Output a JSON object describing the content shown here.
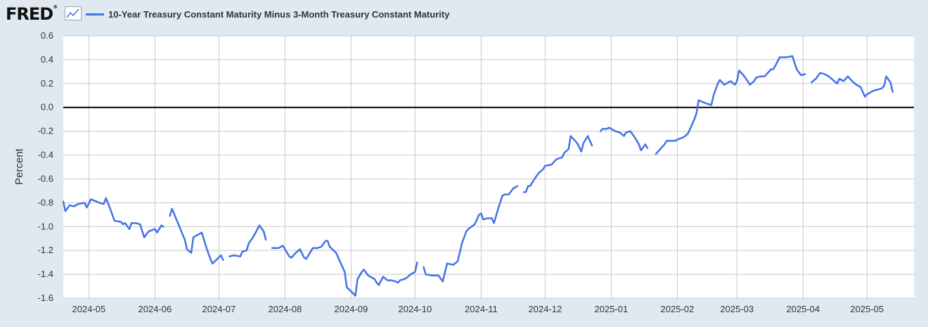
{
  "header": {
    "logo": "FRED",
    "logo_mark": "®"
  },
  "colors": {
    "series": "#4572e7",
    "background": "#e1e9f0",
    "plot": "#ffffff",
    "grid": "#c8c8c8",
    "zero_line": "#000000"
  },
  "chart_data": {
    "type": "line",
    "ylabel": "Percent",
    "ylim": [
      -1.6,
      0.6
    ],
    "yticks": [
      0.6,
      0.4,
      0.2,
      0.0,
      -0.2,
      -0.4,
      -0.6,
      -0.8,
      -1.0,
      -1.2,
      -1.4,
      -1.6
    ],
    "ytick_labels": [
      "0.6",
      "0.4",
      "0.2",
      "0.0",
      "-0.2",
      "-0.4",
      "-0.6",
      "-0.8",
      "-1.0",
      "-1.2",
      "-1.4",
      "-1.6"
    ],
    "x_range": [
      "2024-04-19",
      "2025-05-23"
    ],
    "xticks": [
      "2024-05-01",
      "2024-06-01",
      "2024-07-01",
      "2024-08-01",
      "2024-09-01",
      "2024-10-01",
      "2024-11-01",
      "2024-12-01",
      "2025-01-01",
      "2025-02-01",
      "2025-03-01",
      "2025-04-01",
      "2025-05-01"
    ],
    "xtick_labels": [
      "2024-05",
      "2024-06",
      "2024-07",
      "2024-08",
      "2024-09",
      "2024-10",
      "2024-11",
      "2024-12",
      "2025-01",
      "2025-02",
      "2025-03",
      "2025-04",
      "2025-05"
    ],
    "grid": true,
    "legend_position": "top-left",
    "series": [
      {
        "name": "10-Year Treasury Constant Maturity Minus 3-Month Treasury Constant Maturity",
        "segments": [
          [
            [
              "2024-04-19",
              -0.79
            ],
            [
              "2024-04-20",
              -0.87
            ],
            [
              "2024-04-22",
              -0.82
            ],
            [
              "2024-04-24",
              -0.83
            ],
            [
              "2024-04-26",
              -0.81
            ],
            [
              "2024-04-29",
              -0.8
            ],
            [
              "2024-04-30",
              -0.84
            ],
            [
              "2024-05-02",
              -0.77
            ],
            [
              "2024-05-06",
              -0.8
            ],
            [
              "2024-05-08",
              -0.81
            ],
            [
              "2024-05-09",
              -0.76
            ],
            [
              "2024-05-11",
              -0.85
            ],
            [
              "2024-05-13",
              -0.95
            ],
            [
              "2024-05-16",
              -0.96
            ],
            [
              "2024-05-17",
              -0.98
            ],
            [
              "2024-05-18",
              -0.97
            ],
            [
              "2024-05-20",
              -1.02
            ],
            [
              "2024-05-21",
              -0.97
            ],
            [
              "2024-05-23",
              -0.97
            ],
            [
              "2024-05-25",
              -0.98
            ],
            [
              "2024-05-27",
              -1.09
            ],
            [
              "2024-05-29",
              -1.04
            ],
            [
              "2024-06-01",
              -1.02
            ],
            [
              "2024-06-02",
              -1.05
            ],
            [
              "2024-06-04",
              -0.99
            ],
            [
              "2024-06-05",
              -1.0
            ]
          ],
          [
            [
              "2024-06-08",
              -0.91
            ],
            [
              "2024-06-09",
              -0.85
            ],
            [
              "2024-06-12",
              -0.98
            ],
            [
              "2024-06-15",
              -1.11
            ],
            [
              "2024-06-16",
              -1.19
            ],
            [
              "2024-06-18",
              -1.22
            ],
            [
              "2024-06-19",
              -1.09
            ],
            [
              "2024-06-23",
              -1.05
            ],
            [
              "2024-06-25",
              -1.17
            ],
            [
              "2024-06-27",
              -1.27
            ],
            [
              "2024-06-28",
              -1.31
            ],
            [
              "2024-07-02",
              -1.24
            ],
            [
              "2024-07-03",
              -1.28
            ]
          ],
          [
            [
              "2024-07-06",
              -1.25
            ],
            [
              "2024-07-08",
              -1.24
            ],
            [
              "2024-07-11",
              -1.25
            ],
            [
              "2024-07-12",
              -1.21
            ],
            [
              "2024-07-14",
              -1.2
            ],
            [
              "2024-07-15",
              -1.14
            ],
            [
              "2024-07-17",
              -1.09
            ],
            [
              "2024-07-20",
              -0.99
            ],
            [
              "2024-07-22",
              -1.04
            ],
            [
              "2024-07-23",
              -1.11
            ]
          ],
          [
            [
              "2024-07-26",
              -1.18
            ],
            [
              "2024-07-29",
              -1.18
            ],
            [
              "2024-07-31",
              -1.16
            ],
            [
              "2024-08-01",
              -1.19
            ],
            [
              "2024-08-03",
              -1.25
            ],
            [
              "2024-08-04",
              -1.26
            ],
            [
              "2024-08-06",
              -1.22
            ],
            [
              "2024-08-08",
              -1.19
            ],
            [
              "2024-08-10",
              -1.26
            ],
            [
              "2024-08-11",
              -1.27
            ],
            [
              "2024-08-14",
              -1.18
            ],
            [
              "2024-08-16",
              -1.18
            ],
            [
              "2024-08-18",
              -1.17
            ],
            [
              "2024-08-20",
              -1.12
            ],
            [
              "2024-08-21",
              -1.12
            ],
            [
              "2024-08-22",
              -1.17
            ],
            [
              "2024-08-25",
              -1.22
            ],
            [
              "2024-08-27",
              -1.3
            ],
            [
              "2024-08-29",
              -1.38
            ],
            [
              "2024-08-30",
              -1.51
            ],
            [
              "2024-09-02",
              -1.56
            ],
            [
              "2024-09-03",
              -1.58
            ],
            [
              "2024-09-04",
              -1.44
            ],
            [
              "2024-09-06",
              -1.38
            ],
            [
              "2024-09-07",
              -1.36
            ],
            [
              "2024-09-09",
              -1.41
            ],
            [
              "2024-09-12",
              -1.44
            ],
            [
              "2024-09-13",
              -1.47
            ],
            [
              "2024-09-14",
              -1.49
            ],
            [
              "2024-09-16",
              -1.42
            ],
            [
              "2024-09-18",
              -1.45
            ],
            [
              "2024-09-20",
              -1.45
            ],
            [
              "2024-09-22",
              -1.46
            ],
            [
              "2024-09-23",
              -1.47
            ],
            [
              "2024-09-24",
              -1.45
            ],
            [
              "2024-09-26",
              -1.44
            ],
            [
              "2024-09-27",
              -1.43
            ],
            [
              "2024-09-29",
              -1.4
            ],
            [
              "2024-10-01",
              -1.38
            ],
            [
              "2024-10-02",
              -1.3
            ]
          ],
          [
            [
              "2024-10-05",
              -1.34
            ],
            [
              "2024-10-06",
              -1.4
            ],
            [
              "2024-10-09",
              -1.41
            ],
            [
              "2024-10-10",
              -1.41
            ],
            [
              "2024-10-12",
              -1.41
            ],
            [
              "2024-10-14",
              -1.46
            ],
            [
              "2024-10-16",
              -1.31
            ],
            [
              "2024-10-19",
              -1.32
            ],
            [
              "2024-10-21",
              -1.29
            ],
            [
              "2024-10-23",
              -1.14
            ],
            [
              "2024-10-25",
              -1.04
            ],
            [
              "2024-10-26",
              -1.02
            ],
            [
              "2024-10-29",
              -0.98
            ],
            [
              "2024-10-31",
              -0.9
            ],
            [
              "2024-11-01",
              -0.89
            ],
            [
              "2024-11-02",
              -0.94
            ],
            [
              "2024-11-04",
              -0.93
            ],
            [
              "2024-11-06",
              -0.93
            ],
            [
              "2024-11-07",
              -0.97
            ],
            [
              "2024-11-09",
              -0.85
            ],
            [
              "2024-11-11",
              -0.74
            ],
            [
              "2024-11-12",
              -0.73
            ],
            [
              "2024-11-14",
              -0.73
            ],
            [
              "2024-11-16",
              -0.68
            ],
            [
              "2024-11-18",
              -0.66
            ]
          ],
          [
            [
              "2024-11-21",
              -0.71
            ],
            [
              "2024-11-22",
              -0.71
            ],
            [
              "2024-11-23",
              -0.66
            ],
            [
              "2024-11-24",
              -0.66
            ],
            [
              "2024-11-26",
              -0.6
            ],
            [
              "2024-11-28",
              -0.55
            ],
            [
              "2024-11-30",
              -0.52
            ],
            [
              "2024-12-01",
              -0.49
            ],
            [
              "2024-12-04",
              -0.48
            ],
            [
              "2024-12-06",
              -0.44
            ],
            [
              "2024-12-07",
              -0.43
            ],
            [
              "2024-12-09",
              -0.42
            ],
            [
              "2024-12-10",
              -0.38
            ],
            [
              "2024-12-12",
              -0.35
            ],
            [
              "2024-12-13",
              -0.24
            ],
            [
              "2024-12-16",
              -0.3
            ],
            [
              "2024-12-18",
              -0.37
            ],
            [
              "2024-12-19",
              -0.3
            ],
            [
              "2024-12-21",
              -0.24
            ],
            [
              "2024-12-23",
              -0.32
            ]
          ],
          [
            [
              "2024-12-27",
              -0.2
            ],
            [
              "2024-12-28",
              -0.18
            ],
            [
              "2024-12-30",
              -0.18
            ],
            [
              "2024-12-31",
              -0.17
            ],
            [
              "2025-01-03",
              -0.2
            ],
            [
              "2025-01-05",
              -0.21
            ],
            [
              "2025-01-07",
              -0.24
            ],
            [
              "2025-01-08",
              -0.21
            ],
            [
              "2025-01-10",
              -0.2
            ],
            [
              "2025-01-12",
              -0.25
            ],
            [
              "2025-01-14",
              -0.31
            ],
            [
              "2025-01-15",
              -0.36
            ],
            [
              "2025-01-17",
              -0.31
            ],
            [
              "2025-01-18",
              -0.34
            ]
          ],
          [
            [
              "2025-01-22",
              -0.39
            ],
            [
              "2025-01-24",
              -0.35
            ],
            [
              "2025-01-26",
              -0.31
            ],
            [
              "2025-01-27",
              -0.28
            ],
            [
              "2025-01-29",
              -0.28
            ],
            [
              "2025-01-31",
              -0.28
            ],
            [
              "2025-02-01",
              -0.27
            ],
            [
              "2025-02-04",
              -0.25
            ],
            [
              "2025-02-06",
              -0.22
            ],
            [
              "2025-02-07",
              -0.18
            ],
            [
              "2025-02-09",
              -0.1
            ],
            [
              "2025-02-10",
              -0.05
            ],
            [
              "2025-02-11",
              0.06
            ],
            [
              "2025-02-15",
              0.03
            ],
            [
              "2025-02-17",
              0.02
            ],
            [
              "2025-02-18",
              0.1
            ],
            [
              "2025-02-20",
              0.2
            ],
            [
              "2025-02-21",
              0.23
            ],
            [
              "2025-02-23",
              0.19
            ],
            [
              "2025-02-24",
              0.2
            ],
            [
              "2025-02-26",
              0.22
            ],
            [
              "2025-02-28",
              0.19
            ],
            [
              "2025-03-01",
              0.22
            ],
            [
              "2025-03-02",
              0.31
            ],
            [
              "2025-03-04",
              0.27
            ],
            [
              "2025-03-06",
              0.22
            ],
            [
              "2025-03-07",
              0.19
            ],
            [
              "2025-03-09",
              0.22
            ],
            [
              "2025-03-10",
              0.25
            ],
            [
              "2025-03-12",
              0.26
            ],
            [
              "2025-03-14",
              0.26
            ],
            [
              "2025-03-17",
              0.32
            ],
            [
              "2025-03-18",
              0.32
            ],
            [
              "2025-03-19",
              0.35
            ],
            [
              "2025-03-21",
              0.42
            ],
            [
              "2025-03-24",
              0.42
            ],
            [
              "2025-03-27",
              0.43
            ],
            [
              "2025-03-29",
              0.32
            ],
            [
              "2025-03-31",
              0.27
            ],
            [
              "2025-04-02",
              0.28
            ]
          ],
          [
            [
              "2025-04-05",
              0.21
            ],
            [
              "2025-04-07",
              0.24
            ],
            [
              "2025-04-09",
              0.29
            ],
            [
              "2025-04-11",
              0.28
            ],
            [
              "2025-04-13",
              0.26
            ],
            [
              "2025-04-15",
              0.23
            ],
            [
              "2025-04-17",
              0.2
            ],
            [
              "2025-04-18",
              0.24
            ],
            [
              "2025-04-20",
              0.22
            ],
            [
              "2025-04-22",
              0.26
            ],
            [
              "2025-04-24",
              0.22
            ],
            [
              "2025-04-26",
              0.19
            ],
            [
              "2025-04-28",
              0.17
            ],
            [
              "2025-04-30",
              0.09
            ],
            [
              "2025-05-01",
              0.11
            ],
            [
              "2025-05-03",
              0.13
            ],
            [
              "2025-05-04",
              0.14
            ],
            [
              "2025-05-06",
              0.15
            ],
            [
              "2025-05-08",
              0.16
            ],
            [
              "2025-05-09",
              0.18
            ],
            [
              "2025-05-10",
              0.26
            ],
            [
              "2025-05-12",
              0.21
            ],
            [
              "2025-05-13",
              0.13
            ]
          ]
        ]
      }
    ]
  }
}
